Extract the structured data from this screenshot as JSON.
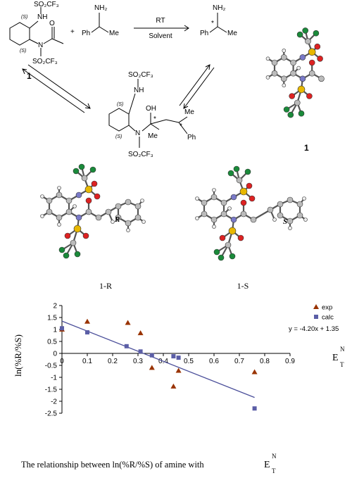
{
  "scheme": {
    "reactant": {
      "stereo_nh": "(S)",
      "nh": "NH",
      "so2cf3_top": "SO₂CF₃",
      "o": "O",
      "stereo_n": "(S)",
      "n": "N",
      "so2cf3_bottom": "SO₂CF₃",
      "label": "1"
    },
    "plus": "+",
    "amine": {
      "nh2": "NH₂",
      "ph": "Ph",
      "me": "Me"
    },
    "arrow": {
      "above": "RT",
      "below": "Solvent"
    },
    "product": {
      "nh2": "NH₂",
      "star": "*",
      "ph": "Ph",
      "me": "Me"
    },
    "intermediate": {
      "so2cf3_top": "SO₂CF₃",
      "nh": "NH",
      "stereo_nh": "(S)",
      "stereo_n": "(S)",
      "oh": "OH",
      "star1": "*",
      "me1": "Me",
      "n": "N",
      "so2cf3_bottom": "SO₂CF₃",
      "me2": "Me",
      "star2": "*",
      "ph": "Ph"
    },
    "structure_label": "1"
  },
  "structures": {
    "r_label": "R",
    "s_label": "S",
    "caption_r": "1-R",
    "caption_s": "1-S"
  },
  "chart_data": {
    "type": "scatter",
    "y_label": "ln(%R/%S)",
    "x_label": {
      "main": "E",
      "sub": "T",
      "sup": "N"
    },
    "caption": {
      "text": "The relationship between ln(%R/%S) of amine with",
      "main": "E",
      "sub": "T",
      "sup": "N"
    },
    "xlim": [
      0,
      0.9
    ],
    "ylim": [
      -2.5,
      2
    ],
    "xticks": [
      0,
      0.1,
      0.2,
      0.3,
      0.4,
      0.5,
      0.6,
      0.7,
      0.8,
      0.9
    ],
    "yticks": [
      -2.5,
      -2,
      -1.5,
      -1,
      -0.5,
      0,
      0.5,
      1,
      1.5,
      2
    ],
    "series": [
      {
        "name": "exp",
        "color": "#993300",
        "marker": "triangle",
        "x": [
          0,
          0.1,
          0.26,
          0.31,
          0.355,
          0.44,
          0.46,
          0.76
        ],
        "values": [
          1.0,
          1.33,
          1.28,
          0.85,
          -0.6,
          -1.38,
          -0.72,
          -0.78
        ]
      },
      {
        "name": "calc",
        "color": "#5b5ea6",
        "marker": "square",
        "x": [
          0,
          0.1,
          0.255,
          0.31,
          0.355,
          0.44,
          0.46,
          0.76
        ],
        "values": [
          1.05,
          0.88,
          0.3,
          0.08,
          -0.08,
          -0.12,
          -0.18,
          -2.3
        ]
      }
    ],
    "trendline": {
      "slope": -4.2,
      "intercept": 1.35,
      "label": "y = -4.20x + 1.35",
      "color": "#4b4f9a"
    },
    "legend": "upper right"
  }
}
